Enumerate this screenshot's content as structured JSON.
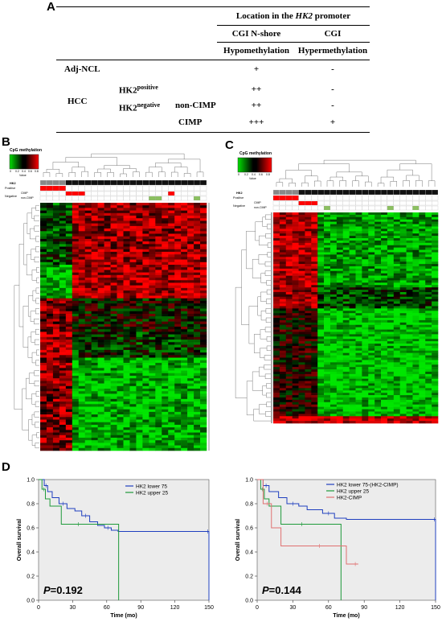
{
  "panels": {
    "a": "A",
    "b": "B",
    "c": "C",
    "d": "D"
  },
  "table": {
    "header_main_prefix": "Location in the ",
    "header_main_gene": "HK2",
    "header_main_suffix": " promoter",
    "col1_region": "CGI N-shore",
    "col2_region": "CGI",
    "col1_status": "Hypomethylation",
    "col2_status": "Hypermethylation",
    "rows": [
      {
        "group": "Adj-NCL",
        "sub": "",
        "sub2": "",
        "col1": "+",
        "col2": "-"
      },
      {
        "group": "",
        "sub": "HK2",
        "sub_sup": "positive",
        "sub2": "",
        "col1": "++",
        "col2": "-"
      },
      {
        "group": "HCC",
        "sub": "HK2",
        "sub_sup": "negative",
        "sub2": "non-CIMP",
        "col1": "++",
        "col2": "-"
      },
      {
        "group": "",
        "sub": "",
        "sub2": "CIMP",
        "col1": "+++",
        "col2": "+"
      }
    ]
  },
  "heatmap_b": {
    "legend_title": "CpG methylation",
    "legend_sub": "Value",
    "legend_ticks": [
      "0",
      "0.2",
      "0.4",
      "0.6",
      "0.8"
    ],
    "rows": [
      "HK2",
      "Positive",
      "Negative"
    ],
    "sub_rows": [
      "CIMP",
      "non-CIMP"
    ]
  },
  "heatmap_c": {
    "legend_title": "CpG methylation",
    "legend_sub": "Value",
    "legend_ticks": [
      "0",
      "0.2",
      "0.4",
      "0.6",
      "0.8"
    ],
    "rows": [
      "HK2",
      "Positive",
      "Negative"
    ],
    "sub_rows": [
      "CIMP",
      "non-CIMP"
    ]
  },
  "chart_data": [
    {
      "type": "line",
      "xlabel": "Time (mo)",
      "ylabel": "Overall survival",
      "xlim": [
        0,
        150
      ],
      "ylim": [
        0,
        1.0
      ],
      "xticks": [
        0,
        30,
        60,
        90,
        120,
        150
      ],
      "yticks": [
        0.0,
        0.2,
        0.4,
        0.6,
        0.8,
        1.0
      ],
      "annotation": "P=0.192",
      "legend_position": "top-right",
      "series": [
        {
          "name": "HK2 lower 75",
          "color": "#1f3fbf",
          "x": [
            0,
            5,
            8,
            12,
            18,
            25,
            32,
            38,
            45,
            52,
            58,
            64,
            70,
            148,
            150
          ],
          "y": [
            1.0,
            0.95,
            0.9,
            0.85,
            0.8,
            0.76,
            0.74,
            0.7,
            0.65,
            0.62,
            0.6,
            0.58,
            0.57,
            0.57,
            0.0
          ]
        },
        {
          "name": "HK2 upper 25",
          "color": "#1e9a3a",
          "x": [
            0,
            3,
            6,
            10,
            20,
            50,
            70,
            70.5
          ],
          "y": [
            1.0,
            0.92,
            0.84,
            0.78,
            0.63,
            0.63,
            0.63,
            0.0
          ]
        }
      ]
    },
    {
      "type": "line",
      "xlabel": "Time (mo)",
      "ylabel": "Overall survival",
      "xlim": [
        0,
        150
      ],
      "ylim": [
        0,
        1.0
      ],
      "xticks": [
        0,
        30,
        60,
        90,
        120,
        150
      ],
      "yticks": [
        0.0,
        0.2,
        0.4,
        0.6,
        0.8,
        1.0
      ],
      "annotation": "P=0.144",
      "legend_position": "top-right",
      "series": [
        {
          "name": "HK2 lower 75-(HK2-CIMP)",
          "color": "#1f3fbf",
          "x": [
            0,
            5,
            10,
            18,
            25,
            35,
            42,
            55,
            65,
            75,
            148,
            150
          ],
          "y": [
            1.0,
            0.95,
            0.9,
            0.85,
            0.8,
            0.78,
            0.75,
            0.72,
            0.68,
            0.67,
            0.67,
            0.0
          ]
        },
        {
          "name": "HK2 upper 25",
          "color": "#1e9a3a",
          "x": [
            0,
            3,
            6,
            10,
            20,
            55,
            70,
            70.5
          ],
          "y": [
            1.0,
            0.92,
            0.84,
            0.78,
            0.63,
            0.63,
            0.63,
            0.0
          ]
        },
        {
          "name": "HK2-CIMP",
          "color": "#e07070",
          "x": [
            0,
            5,
            12,
            20,
            45,
            60,
            75,
            80,
            85
          ],
          "y": [
            1.0,
            0.8,
            0.6,
            0.45,
            0.45,
            0.45,
            0.3,
            0.3,
            0.3
          ]
        }
      ]
    }
  ]
}
